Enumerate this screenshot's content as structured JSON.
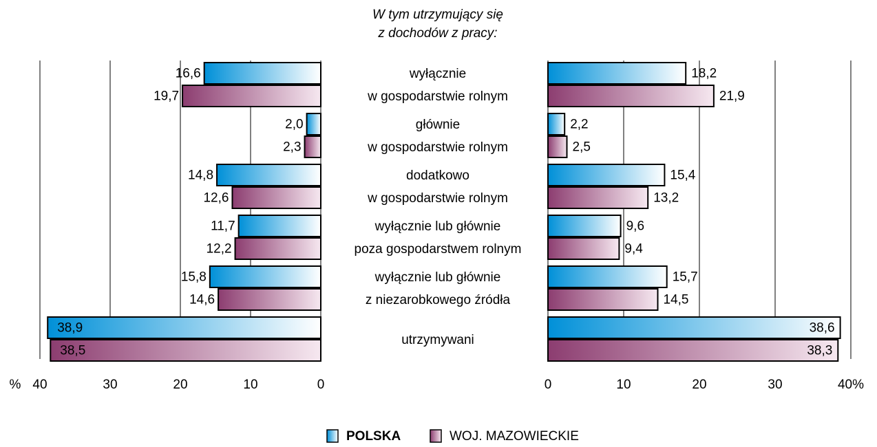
{
  "chart_data": {
    "type": "butterfly_bar",
    "title": [
      "W tym utrzymujący się",
      "z dochodów z pracy:"
    ],
    "categories": [
      [
        "wyłącznie",
        "w gospodarstwie rolnym"
      ],
      [
        "głównie",
        "w gospodarstwie rolnym"
      ],
      [
        "dodatkowo",
        "w gospodarstwie rolnym"
      ],
      [
        "wyłącznie lub głównie",
        "poza gospodarstwem rolnym"
      ],
      [
        "wyłącznie lub głównie",
        "z niezarobkowego źródła"
      ],
      [
        "utrzymywani"
      ]
    ],
    "series": [
      {
        "name": "POLSKA",
        "color": "#0090d8",
        "color_light": "#ffffff",
        "left_values": [
          16.6,
          2.0,
          14.8,
          11.7,
          15.8,
          38.9
        ],
        "left_value_labels": [
          "16,6",
          "2,0",
          "14,8",
          "11,7",
          "15,8",
          "38,9"
        ],
        "right_values": [
          18.2,
          2.2,
          15.4,
          9.6,
          15.7,
          38.6
        ],
        "right_value_labels": [
          "18,2",
          "2,2",
          "15,4",
          "9,6",
          "15,7",
          "38,6"
        ]
      },
      {
        "name": "WOJ. MAZOWIECKIE",
        "color": "#8c3d70",
        "color_light": "#f6e8f0",
        "left_values": [
          19.7,
          2.3,
          12.6,
          12.2,
          14.6,
          38.5
        ],
        "left_value_labels": [
          "19,7",
          "2,3",
          "12,6",
          "12,2",
          "14,6",
          "38,5"
        ],
        "right_values": [
          21.9,
          2.5,
          13.2,
          9.4,
          14.5,
          38.3
        ],
        "right_value_labels": [
          "21,9",
          "2,5",
          "13,2",
          "9,4",
          "14,5",
          "38,3"
        ]
      }
    ],
    "left_axis": {
      "xlim": [
        0,
        40
      ],
      "xticks": [
        40,
        30,
        20,
        10,
        0
      ],
      "reversed": true,
      "unit": "%"
    },
    "right_axis": {
      "xlim": [
        0,
        40
      ],
      "xticks": [
        0,
        10,
        20,
        30,
        {
          "value": 40,
          "label": "40%"
        }
      ]
    },
    "grid": true
  }
}
